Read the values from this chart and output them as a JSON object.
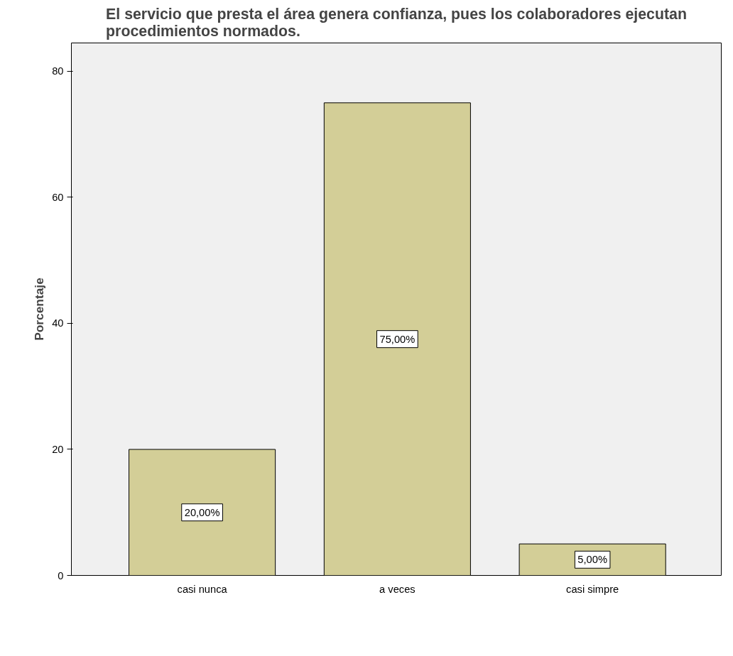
{
  "chart_data": {
    "type": "bar",
    "title": "El servicio que presta el área genera confianza, pues los colaboradores ejecutan procedimientos normados.",
    "ylabel": "Porcentaje",
    "categories": [
      "casi nunca",
      "a veces",
      "casi simpre"
    ],
    "values": [
      20,
      75,
      5
    ],
    "color": "#d3ce97",
    "value_labels": [
      "20,00%",
      "75,00%",
      "5,00%"
    ],
    "ylim": [
      0,
      84.5
    ],
    "yticks": [
      0,
      20,
      40,
      60,
      80
    ],
    "grid": false
  }
}
